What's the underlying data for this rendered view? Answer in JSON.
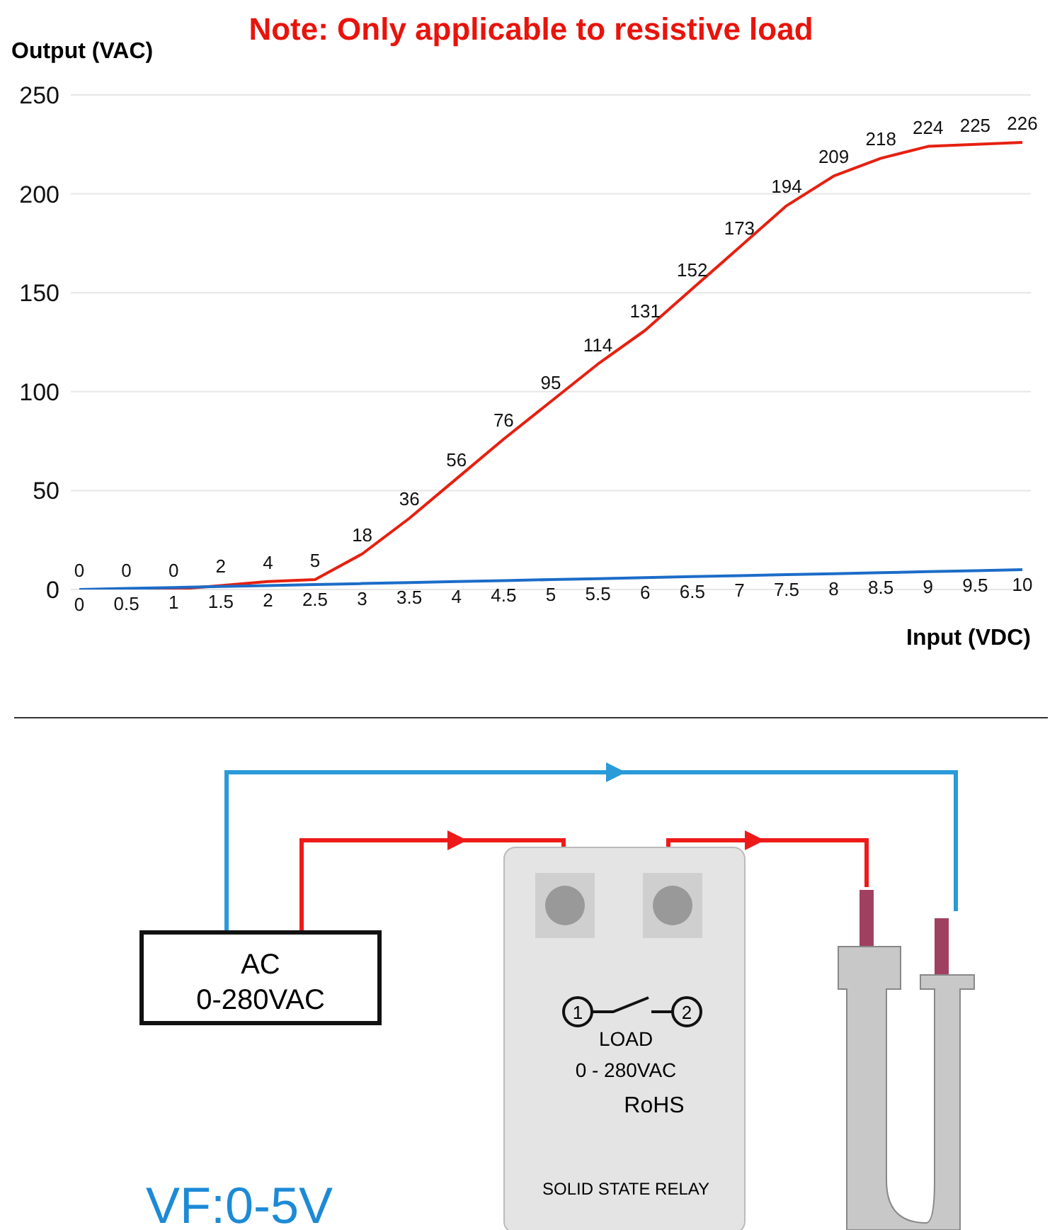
{
  "chart_data": {
    "type": "line",
    "title": "Note: Only applicable to resistive load",
    "xlabel": "Input (VDC)",
    "ylabel": "Output (VAC)",
    "categories": [
      null,
      null,
      null,
      null,
      null,
      null,
      null,
      null,
      null,
      null,
      null,
      null,
      null,
      null,
      null,
      null,
      null,
      null,
      null,
      null,
      null
    ],
    "series": [
      {
        "color": "#e62010",
        "values": [
          0,
          0,
          0,
          2,
          4,
          5,
          18,
          36,
          56,
          76,
          95,
          114,
          131,
          152,
          173,
          194,
          209,
          218,
          224,
          225,
          226
        ]
      },
      {
        "color": "#1c6cc8",
        "values": [
          0,
          0.5,
          1,
          1.5,
          2,
          2.5,
          3,
          3.5,
          4,
          4.5,
          5,
          5.5,
          6,
          6.5,
          7,
          7.5,
          8,
          8.5,
          9,
          9.5,
          10
        ]
      }
    ],
    "ylim": [
      0,
      250
    ],
    "yticks": [
      0,
      50,
      100,
      150,
      200,
      250
    ],
    "grid": "y",
    "tick_labels": "y",
    "data_labels": true,
    "marker": "none",
    "line_style": "solid",
    "legend": false,
    "annotations": [
      "AC",
      "0-280VAC",
      "1",
      "2",
      "LOAD",
      "0 - 280VAC",
      "RoHS",
      "SOLID STATE RELAY",
      "VF:0-5V"
    ]
  }
}
